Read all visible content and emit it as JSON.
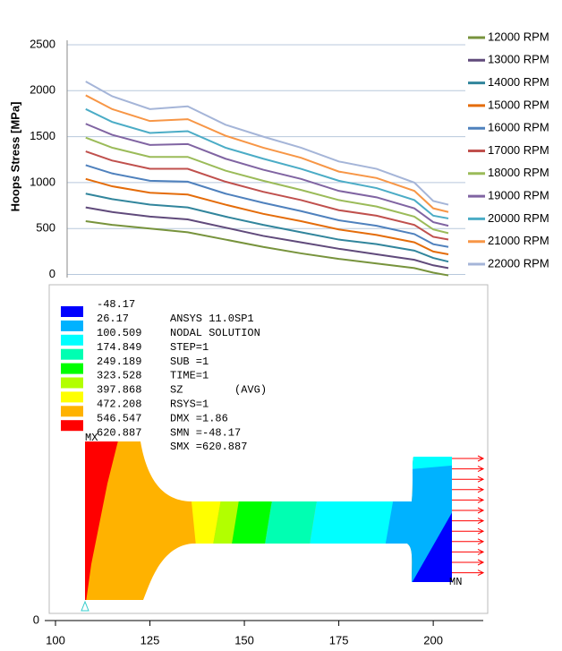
{
  "chart_data": [
    {
      "type": "line",
      "ylabel": "Hoops Stress [MPa]",
      "x": [
        108,
        115,
        125,
        135,
        145,
        155,
        165,
        175,
        185,
        195,
        200,
        204
      ],
      "xlim": [
        100,
        213
      ],
      "ylim": [
        -100,
        2500
      ],
      "yticks": [
        0,
        500,
        1000,
        1500,
        2000,
        2500
      ],
      "grid": true,
      "series": [
        {
          "name": "12000 RPM",
          "color": "#77933c",
          "values": [
            580,
            540,
            500,
            460,
            380,
            300,
            230,
            170,
            120,
            70,
            20,
            -10
          ]
        },
        {
          "name": "13000 RPM",
          "color": "#604a7b",
          "values": [
            730,
            680,
            630,
            600,
            510,
            420,
            350,
            280,
            220,
            160,
            100,
            70
          ]
        },
        {
          "name": "14000 RPM",
          "color": "#31859c",
          "values": [
            880,
            820,
            760,
            730,
            630,
            540,
            460,
            380,
            330,
            260,
            180,
            140
          ]
        },
        {
          "name": "15000 RPM",
          "color": "#e46c0a",
          "values": [
            1040,
            960,
            890,
            870,
            760,
            660,
            580,
            490,
            430,
            350,
            250,
            220
          ]
        },
        {
          "name": "16000 RPM",
          "color": "#4f81bd",
          "values": [
            1190,
            1100,
            1020,
            1010,
            880,
            780,
            690,
            590,
            530,
            440,
            330,
            300
          ]
        },
        {
          "name": "17000 RPM",
          "color": "#c0504d",
          "values": [
            1340,
            1240,
            1150,
            1150,
            1010,
            900,
            810,
            700,
            640,
            540,
            410,
            380
          ]
        },
        {
          "name": "18000 RPM",
          "color": "#9bbb59",
          "values": [
            1490,
            1380,
            1280,
            1280,
            1130,
            1020,
            920,
            810,
            740,
            630,
            490,
            450
          ]
        },
        {
          "name": "19000 RPM",
          "color": "#8064a2",
          "values": [
            1640,
            1520,
            1410,
            1420,
            1260,
            1140,
            1040,
            910,
            840,
            720,
            570,
            530
          ]
        },
        {
          "name": "20000 RPM",
          "color": "#4bacc6",
          "values": [
            1800,
            1660,
            1540,
            1560,
            1380,
            1260,
            1150,
            1020,
            940,
            810,
            640,
            610
          ]
        },
        {
          "name": "21000 RPM",
          "color": "#f79646",
          "values": [
            1950,
            1800,
            1670,
            1690,
            1510,
            1380,
            1270,
            1120,
            1050,
            910,
            720,
            680
          ]
        },
        {
          "name": "22000 RPM",
          "color": "#a5b5d8",
          "values": [
            2100,
            1940,
            1800,
            1830,
            1630,
            1500,
            1380,
            1230,
            1150,
            1000,
            800,
            760
          ]
        }
      ]
    },
    {
      "type": "contour",
      "levels": [
        -48.17,
        26.17,
        100.509,
        174.849,
        249.189,
        323.528,
        397.868,
        472.208,
        546.547,
        620.887
      ],
      "colors": [
        "#0000ff",
        "#00b2ff",
        "#00ffff",
        "#00ffb2",
        "#00ff00",
        "#b2ff00",
        "#ffff00",
        "#ffb200",
        "#ff0000"
      ],
      "annotations": [
        "ANSYS 11.0SP1",
        "NODAL SOLUTION",
        "STEP=1",
        "SUB =1",
        "TIME=1",
        "SZ        (AVG)",
        "RSYS=1",
        "DMX =1.86",
        "SMN =-48.17",
        "SMX =620.887"
      ],
      "max_label": "MX",
      "min_label": "MN",
      "xlim": [
        100,
        213
      ],
      "xticks": [
        100,
        125,
        150,
        175,
        200
      ],
      "yticks": [
        0
      ]
    }
  ]
}
